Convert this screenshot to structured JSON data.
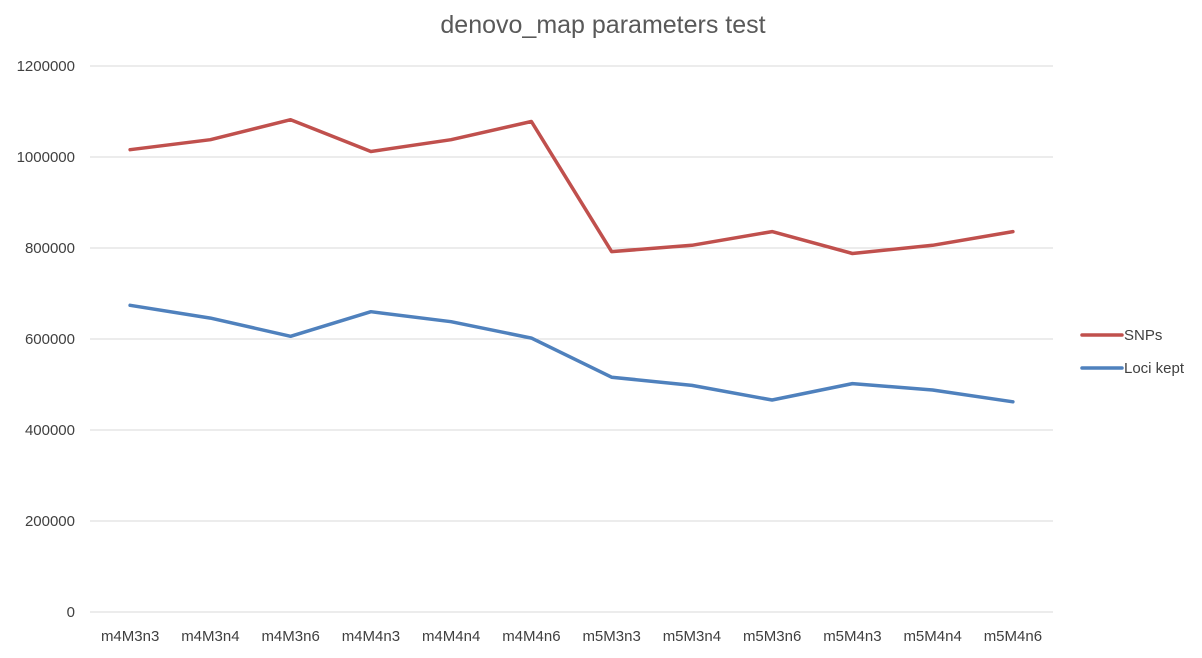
{
  "chart_data": {
    "type": "line",
    "title": "denovo_map parameters test",
    "xlabel": "",
    "ylabel": "",
    "categories": [
      "m4M3n3",
      "m4M3n4",
      "m4M3n6",
      "m4M4n3",
      "m4M4n4",
      "m4M4n6",
      "m5M3n3",
      "m5M3n4",
      "m5M3n6",
      "m5M4n3",
      "m5M4n4",
      "m5M4n6"
    ],
    "ylim": [
      0,
      1200000
    ],
    "yticks": [
      "0",
      "200000",
      "400000",
      "600000",
      "800000",
      "1000000",
      "1200000"
    ],
    "grid": true,
    "legend_position": "right",
    "series": [
      {
        "name": "SNPs",
        "color": "#c0504d",
        "values": [
          1016000,
          1038000,
          1082000,
          1012000,
          1038000,
          1078000,
          792000,
          806000,
          836000,
          788000,
          806000,
          836000
        ]
      },
      {
        "name": "Loci kept",
        "color": "#4f81bd",
        "values": [
          674000,
          646000,
          606000,
          660000,
          638000,
          602000,
          516000,
          498000,
          466000,
          502000,
          488000,
          462000
        ]
      }
    ]
  }
}
